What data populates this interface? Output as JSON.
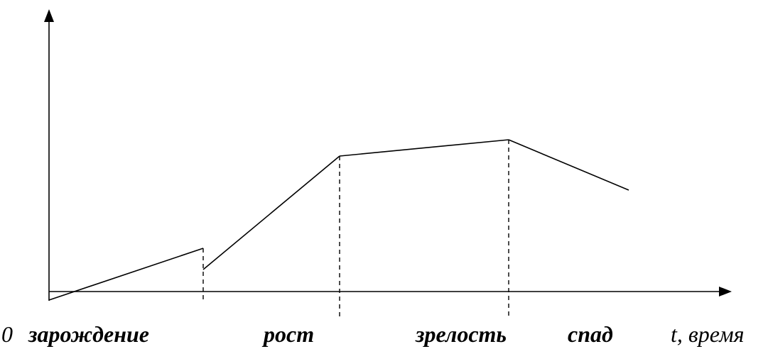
{
  "labels": {
    "origin": "0",
    "time_axis": "t, время",
    "stages": [
      "зарождение",
      "рост",
      "зрелость",
      "спад"
    ]
  }
}
